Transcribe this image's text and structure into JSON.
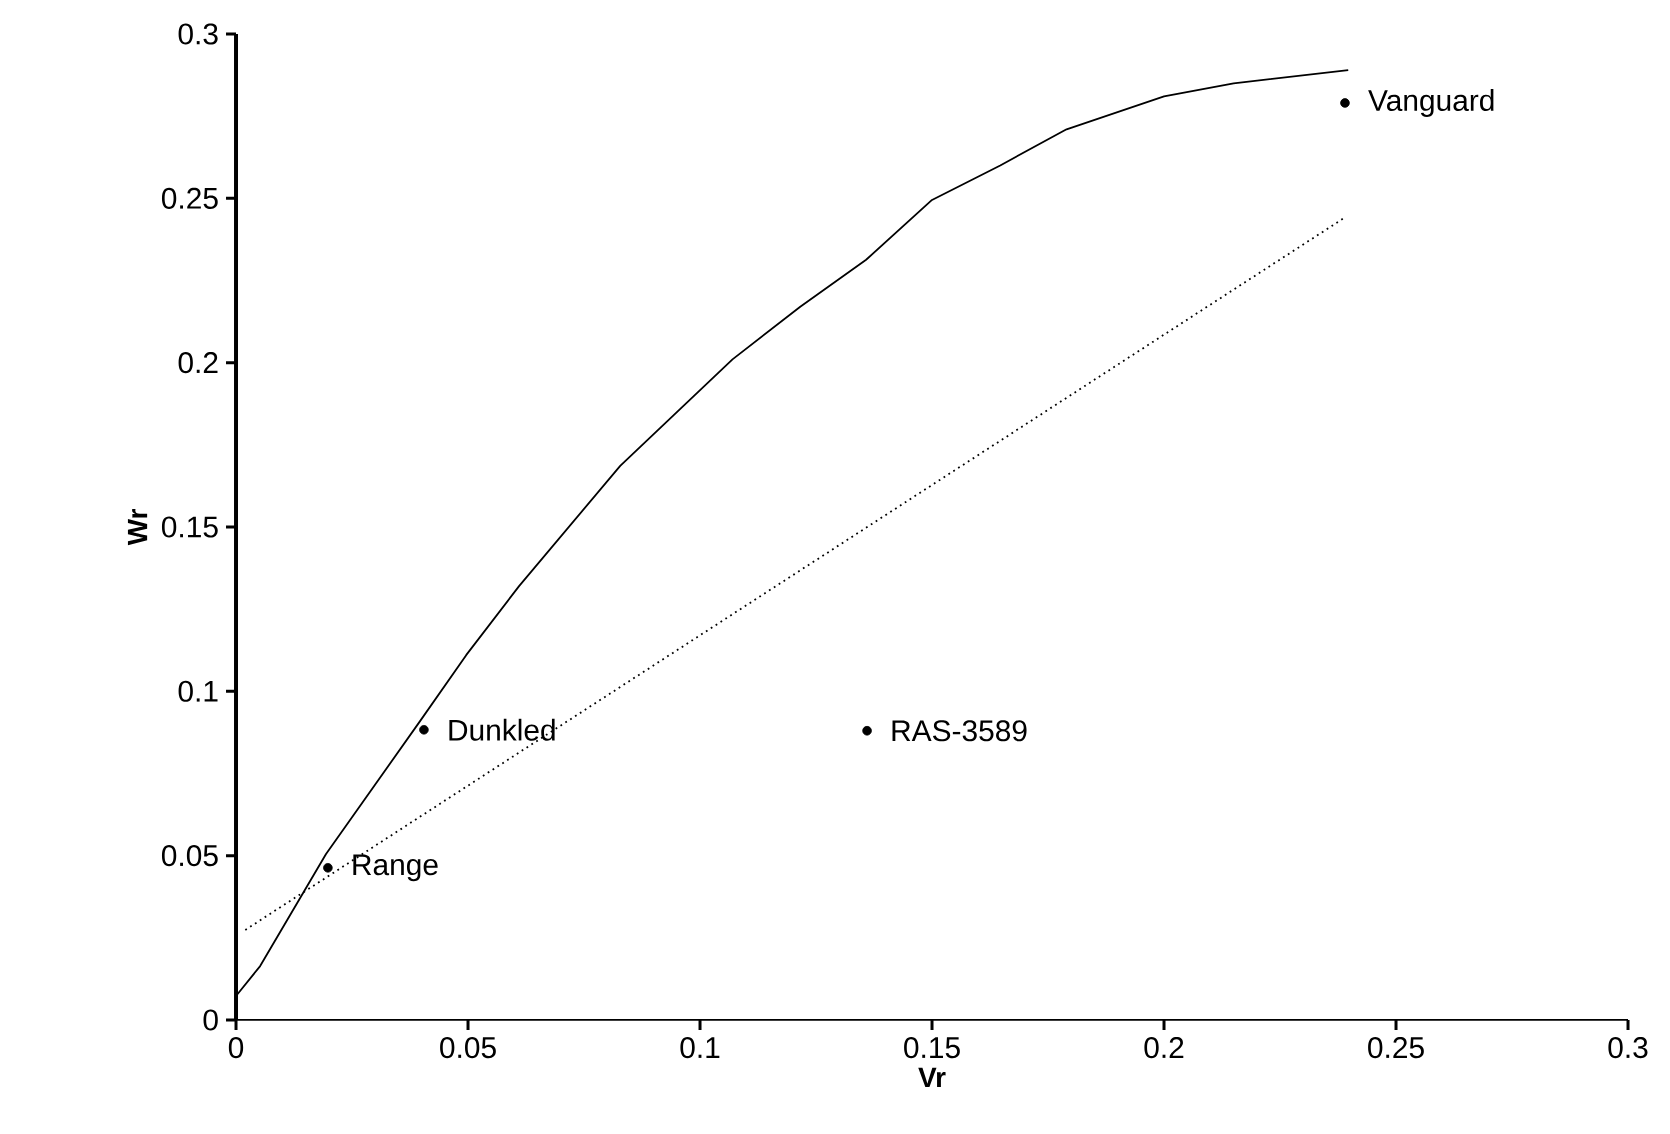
{
  "chart_data": {
    "type": "scatter",
    "xlabel": "Vr",
    "ylabel": "Wr",
    "xlim": [
      0,
      0.3
    ],
    "ylim": [
      0,
      0.3
    ],
    "xticks": [
      0,
      0.05,
      0.1,
      0.15,
      0.2,
      0.25,
      0.3
    ],
    "yticks": [
      0,
      0.05,
      0.1,
      0.15,
      0.2,
      0.25,
      0.3
    ],
    "grid": false,
    "series": [
      {
        "type": "line",
        "color": "#000000",
        "line_style": "solid",
        "marker": "none",
        "x": [
          0,
          0.0052,
          0.0194,
          0.0397,
          0.0496,
          0.061,
          0.0828,
          0.107,
          0.1216,
          0.1358,
          0.15,
          0.1647,
          0.179,
          0.2,
          0.215,
          0.2397
        ],
        "values": [
          0.0073,
          0.0164,
          0.0505,
          0.091,
          0.111,
          0.132,
          0.1686,
          0.201,
          0.217,
          0.2313,
          0.2495,
          0.26,
          0.271,
          0.281,
          0.285,
          0.289
        ]
      },
      {
        "type": "line",
        "color": "#000000",
        "line_style": "dotted",
        "marker": "none",
        "x": [
          0.002,
          0.2388
        ],
        "values": [
          0.0274,
          0.244
        ]
      },
      {
        "color": "#000000",
        "marker": "circle",
        "x": [
          0.0198,
          0.0405,
          0.136,
          0.239
        ],
        "values": [
          0.0463,
          0.0883,
          0.088,
          0.279
        ]
      }
    ],
    "annotations": [
      {
        "text": "Range",
        "x": 0.0198,
        "y": 0.0463
      },
      {
        "text": "Dunkled",
        "x": 0.0405,
        "y": 0.0883
      },
      {
        "text": "RAS-3589",
        "x": 0.136,
        "y": 0.088
      },
      {
        "text": "Vanguard",
        "x": 0.239,
        "y": 0.279
      }
    ]
  }
}
